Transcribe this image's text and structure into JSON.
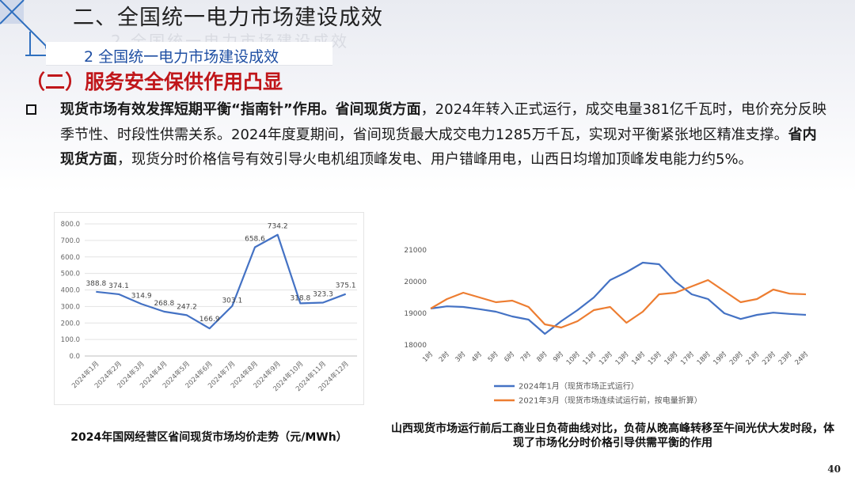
{
  "header": {
    "slide_title": "二、全国统一电力市场建设成效",
    "subtitle": "2 全国统一电力市场建设成效",
    "section_title": "（二）服务安全保供作用凸显"
  },
  "body": {
    "segments": [
      {
        "text": "现货市场有效发挥短期平衡“指南针”作用。省间现货方面",
        "bold": true
      },
      {
        "text": "，2024年转入正式运行，成交电量381亿千瓦时，电价充分反映季节性、时段性供需关系。2024年度夏期间，省间现货最大成交电力1285万千瓦，实现对平衡紧张地区精准支撑。",
        "bold": false
      },
      {
        "text": "省内现货方面",
        "bold": true
      },
      {
        "text": "，现货分时价格信号有效引导火电机组顶峰发电、用户错峰用电，山西日均增加顶峰发电能力约5%。",
        "bold": false
      }
    ]
  },
  "captions": {
    "chart1": "2024年国网经营区省间现货市场均价走势（元/MWh）",
    "chart2": "山西现货市场运行前后工商业日负荷曲线对比，负荷从晚高峰转移至午间光伏大发时段，体现了市场化分时价格引导供需平衡的作用"
  },
  "page_number": "40",
  "chart_data": [
    {
      "type": "line",
      "categories": [
        "2024年1月",
        "2024年2月",
        "2024年3月",
        "2024年4月",
        "2024年5月",
        "2024年6月",
        "2024年7月",
        "2024年8月",
        "2024年9月",
        "2024年10月",
        "2024年11月",
        "2024年12月"
      ],
      "series": [
        {
          "values": [
            388.8,
            374.1,
            314.9,
            268.8,
            247.2,
            166.9,
            303.1,
            658.6,
            734.2,
            318.8,
            323.3,
            375.1
          ],
          "color": "#4472c4"
        }
      ],
      "data_labels": [
        "388.8",
        "374.1",
        "314.9",
        "268.8",
        "247.2",
        "166.9",
        "303.1",
        "658.6",
        "734.2",
        "318.8",
        "323.3",
        "375.1"
      ],
      "ylim": [
        0,
        800
      ],
      "yticks": [
        "0.0",
        "100.0",
        "200.0",
        "300.0",
        "400.0",
        "500.0",
        "600.0",
        "700.0",
        "800.0"
      ],
      "grid": true
    },
    {
      "type": "line",
      "categories": [
        "1时",
        "2时",
        "3时",
        "4时",
        "5时",
        "6时",
        "7时",
        "8时",
        "9时",
        "10时",
        "11时",
        "12时",
        "13时",
        "14时",
        "15时",
        "16时",
        "17时",
        "18时",
        "19时",
        "20时",
        "21时",
        "22时",
        "23时",
        "24时"
      ],
      "series": [
        {
          "name": "2024年1月（现货市场正式运行）",
          "color": "#4472c4",
          "values": [
            19150,
            19220,
            19200,
            19130,
            19050,
            18900,
            18800,
            18350,
            18750,
            19100,
            19500,
            20050,
            20300,
            20600,
            20550,
            20000,
            19600,
            19450,
            19000,
            18820,
            18950,
            19020,
            18980,
            18950
          ]
        },
        {
          "name": "2021年3月（现货市场连续试运行前，按电量折算）",
          "color": "#ed7d31",
          "values": [
            19150,
            19450,
            19650,
            19500,
            19350,
            19400,
            19200,
            18650,
            18550,
            18750,
            19100,
            19200,
            18700,
            19050,
            19600,
            19650,
            19850,
            20050,
            19700,
            19350,
            19450,
            19750,
            19620,
            19600
          ]
        }
      ],
      "ylim": [
        18000,
        21000
      ],
      "yticks": [
        "18000",
        "19000",
        "20000",
        "21000"
      ],
      "legend": "bottom",
      "grid": false
    }
  ]
}
